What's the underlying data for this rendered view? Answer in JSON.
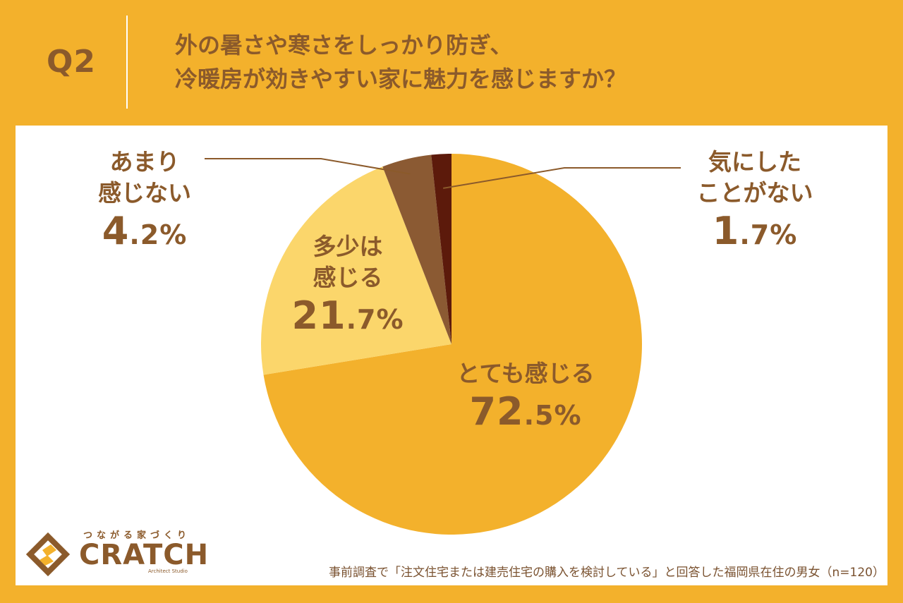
{
  "header": {
    "question_number": "Q2",
    "question_line1": "外の暑さや寒さをしっかり防ぎ、",
    "question_line2": "冷暖房が効きやすい家に魅力を感じますか？"
  },
  "chart_data": {
    "type": "pie",
    "slices": [
      {
        "label_line1": "とても感じる",
        "label_line2": "",
        "value": 72.5,
        "pct_main": "72",
        "pct_tail": ".5%",
        "color": "#F3B12C",
        "text_color": "#8B5A2B"
      },
      {
        "label_line1": "多少は",
        "label_line2": "感じる",
        "value": 21.7,
        "pct_main": "21",
        "pct_tail": ".7%",
        "color": "#FBD66B",
        "text_color": "#8B5A2B"
      },
      {
        "label_line1": "あまり",
        "label_line2": "感じない",
        "value": 4.2,
        "pct_main": "4",
        "pct_tail": ".2%",
        "color": "#8B5A33",
        "text_color": "#8B5A2B"
      },
      {
        "label_line1": "気にした",
        "label_line2": "ことがない",
        "value": 1.7,
        "pct_main": "1",
        "pct_tail": ".7%",
        "color": "#5C1A0B",
        "text_color": "#8B5A2B"
      }
    ],
    "start_angle_deg": 0,
    "direction": "clockwise"
  },
  "footer": {
    "note": "事前調査で「注文住宅または建売住宅の購入を検討している」と回答した福岡県在住の男女（n=120）"
  },
  "logo": {
    "tagline": "つながる家づくり",
    "wordmark": "CRATCH",
    "subtext": "Architect Studio",
    "color": "#8B5A2B",
    "accent": "#F3B12C"
  }
}
